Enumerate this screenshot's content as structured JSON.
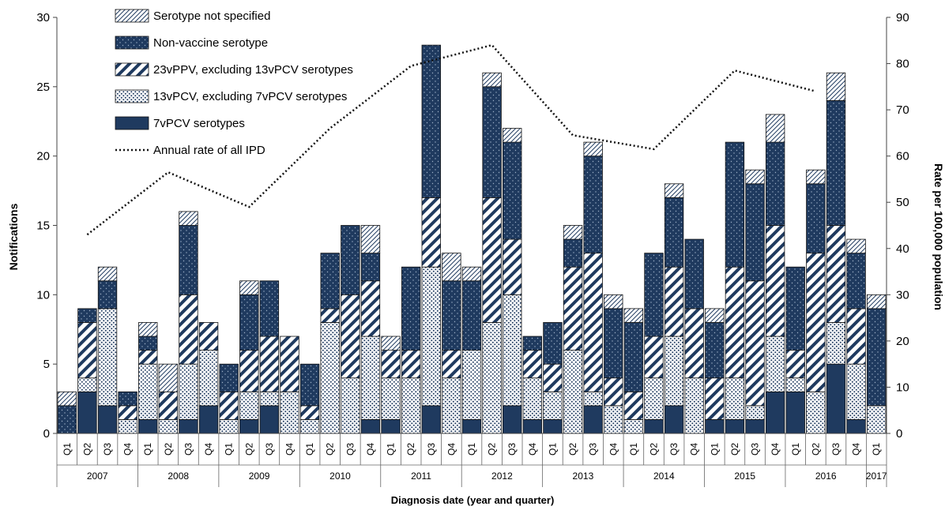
{
  "chart_data": {
    "type": "bar",
    "stacked": true,
    "xlabel": "Diagnosis date (year and quarter)",
    "ylabel": "Notifications",
    "y2label": "Rate per 100,000 population",
    "ylim": [
      0,
      30
    ],
    "y2lim": [
      0,
      90
    ],
    "yticks": [
      "0",
      "5",
      "10",
      "15",
      "20",
      "25",
      "30"
    ],
    "y2ticks": [
      "0",
      "10",
      "20",
      "30",
      "40",
      "50",
      "60",
      "70",
      "80",
      "90"
    ],
    "legend_position": "top-left",
    "grid": false,
    "colors": {
      "navy": "#1f3a5f"
    },
    "years": [
      {
        "label": "2007",
        "quarters": 4
      },
      {
        "label": "2008",
        "quarters": 4
      },
      {
        "label": "2009",
        "quarters": 4
      },
      {
        "label": "2010",
        "quarters": 4
      },
      {
        "label": "2011",
        "quarters": 4
      },
      {
        "label": "2012",
        "quarters": 4
      },
      {
        "label": "2013",
        "quarters": 4
      },
      {
        "label": "2014",
        "quarters": 4
      },
      {
        "label": "2015",
        "quarters": 4
      },
      {
        "label": "2016",
        "quarters": 4
      },
      {
        "label": "2017",
        "quarters": 1
      }
    ],
    "categories": [
      "Q1",
      "Q2",
      "Q3",
      "Q4",
      "Q1",
      "Q2",
      "Q3",
      "Q4",
      "Q1",
      "Q2",
      "Q3",
      "Q4",
      "Q1",
      "Q2",
      "Q3",
      "Q4",
      "Q1",
      "Q2",
      "Q3",
      "Q4",
      "Q1",
      "Q2",
      "Q3",
      "Q4",
      "Q1",
      "Q2",
      "Q3",
      "Q4",
      "Q1",
      "Q2",
      "Q3",
      "Q4",
      "Q1",
      "Q2",
      "Q3",
      "Q4",
      "Q1",
      "Q2",
      "Q3",
      "Q4",
      "Q1"
    ],
    "series": [
      {
        "name": "7vPCV serotypes",
        "pattern": "solid",
        "values": [
          0,
          3,
          2,
          0,
          1,
          0,
          1,
          2,
          0,
          1,
          2,
          0,
          0,
          0,
          0,
          1,
          1,
          0,
          2,
          0,
          1,
          0,
          2,
          1,
          1,
          0,
          2,
          0,
          0,
          1,
          2,
          0,
          1,
          1,
          1,
          3,
          3,
          0,
          5,
          1,
          0
        ]
      },
      {
        "name": "13vPCV, excluding 7vPCV serotypes",
        "pattern": "dots",
        "values": [
          0,
          1,
          7,
          1,
          4,
          1,
          4,
          4,
          1,
          2,
          1,
          3,
          1,
          8,
          4,
          6,
          3,
          4,
          10,
          4,
          5,
          8,
          8,
          3,
          2,
          6,
          1,
          2,
          1,
          3,
          5,
          4,
          0,
          3,
          1,
          4,
          1,
          3,
          3,
          4,
          2
        ]
      },
      {
        "name": "23vPPV, excluding 13vPCV serotypes",
        "pattern": "diag",
        "values": [
          0,
          4,
          0,
          1,
          1,
          2,
          5,
          2,
          2,
          3,
          4,
          4,
          1,
          1,
          6,
          4,
          2,
          2,
          5,
          2,
          0,
          9,
          4,
          2,
          2,
          6,
          10,
          2,
          2,
          3,
          5,
          5,
          3,
          8,
          9,
          8,
          2,
          10,
          7,
          4,
          0
        ]
      },
      {
        "name": "Non-vaccine serotype",
        "pattern": "navydots",
        "values": [
          2,
          1,
          2,
          1,
          1,
          0,
          5,
          0,
          2,
          4,
          4,
          0,
          3,
          4,
          5,
          2,
          0,
          6,
          11,
          5,
          5,
          8,
          7,
          1,
          3,
          2,
          7,
          5,
          5,
          6,
          5,
          5,
          4,
          9,
          7,
          6,
          6,
          5,
          9,
          4,
          7
        ]
      },
      {
        "name": "Serotype not specified",
        "pattern": "hatch",
        "values": [
          1,
          0,
          1,
          0,
          1,
          2,
          1,
          0,
          0,
          1,
          0,
          0,
          0,
          0,
          0,
          2,
          1,
          0,
          0,
          2,
          1,
          1,
          1,
          0,
          0,
          1,
          1,
          1,
          1,
          0,
          1,
          0,
          1,
          0,
          1,
          2,
          0,
          1,
          2,
          1,
          1
        ]
      }
    ],
    "line_series": {
      "name": "Annual rate of all IPD",
      "style": "dotted",
      "points": [
        {
          "x_index": 1,
          "y": 43
        },
        {
          "x_index": 5,
          "y": 56.5
        },
        {
          "x_index": 9,
          "y": 49
        },
        {
          "x_index": 13,
          "y": 66
        },
        {
          "x_index": 17,
          "y": 79.5
        },
        {
          "x_index": 21,
          "y": 84
        },
        {
          "x_index": 25,
          "y": 64.5
        },
        {
          "x_index": 29,
          "y": 61.5
        },
        {
          "x_index": 33,
          "y": 78.5
        },
        {
          "x_index": 37,
          "y": 74
        }
      ]
    }
  }
}
